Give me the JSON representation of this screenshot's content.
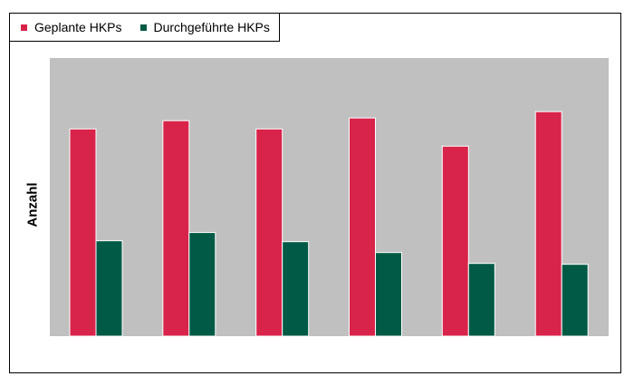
{
  "chart_data": {
    "type": "bar",
    "categories": [
      "",
      "",
      "",
      "",
      "",
      ""
    ],
    "series": [
      {
        "name": "Geplante HKPs",
        "color": "#d8244b",
        "values": [
          228,
          237,
          228,
          240,
          209,
          247
        ]
      },
      {
        "name": "Durchgeführte HKPs",
        "color": "#005a45",
        "values": [
          105,
          114,
          104,
          92,
          80,
          79
        ]
      }
    ],
    "ylabel": "Anzahl",
    "xlabel": "",
    "ylim": [
      0,
      306
    ],
    "legend_position": "top-left",
    "plot_background": "#c0c0c0",
    "grid": false,
    "bar_border": "#ffffff"
  }
}
